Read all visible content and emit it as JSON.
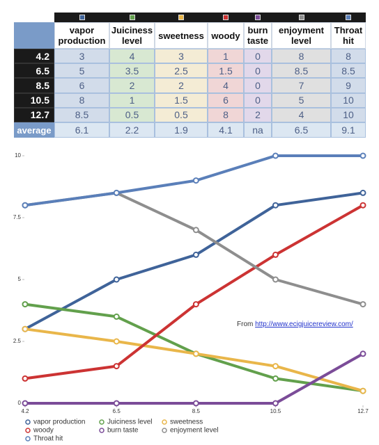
{
  "table": {
    "header": [
      "vapor production",
      "Juiciness level",
      "sweetness",
      "woody",
      "burn taste",
      "enjoyment level",
      "Throat hit"
    ],
    "rows": [
      {
        "label": 4.2,
        "cells": [
          3,
          4,
          3,
          1,
          0,
          8,
          8
        ]
      },
      {
        "label": 6.5,
        "cells": [
          5,
          3.5,
          2.5,
          1.5,
          0,
          8.5,
          8.5
        ]
      },
      {
        "label": 8.5,
        "cells": [
          6,
          2,
          2,
          4,
          0,
          7,
          9
        ]
      },
      {
        "label": 10.5,
        "cells": [
          8,
          1,
          1.5,
          6,
          0,
          5,
          10
        ]
      },
      {
        "label": 12.7,
        "cells": [
          8.5,
          0.5,
          0.5,
          8,
          2,
          4,
          10
        ]
      }
    ],
    "footer": {
      "label": "average",
      "cells": [
        6.1,
        2.2,
        1.9,
        4.1,
        "na",
        6.5,
        9.1
      ]
    }
  },
  "chart_data": {
    "type": "line",
    "x": [
      4.2,
      6.5,
      8.5,
      10.5,
      12.7
    ],
    "xlim": [
      4.2,
      12.7
    ],
    "xticks": [
      4.2,
      6.5,
      8.5,
      10.5,
      12.7
    ],
    "ylim": [
      0,
      10
    ],
    "yticks": [
      0,
      2.5,
      5,
      7.5,
      10
    ],
    "annotation": "From",
    "annotation_link": "http://www.ecigjuicereview.com/",
    "series": [
      {
        "name": "vapor production",
        "color": "#3f6399",
        "values": [
          3,
          5,
          6,
          8,
          8.5
        ]
      },
      {
        "name": "Juiciness level",
        "color": "#62a04c",
        "values": [
          4,
          3.5,
          2,
          1,
          0.5
        ]
      },
      {
        "name": "sweetness",
        "color": "#e9b64a",
        "values": [
          3,
          2.5,
          2,
          1.5,
          0.5
        ]
      },
      {
        "name": "woody",
        "color": "#cc3333",
        "values": [
          1,
          1.5,
          4,
          6,
          8
        ]
      },
      {
        "name": "burn taste",
        "color": "#7b4c98",
        "values": [
          0,
          0,
          0,
          0,
          2
        ]
      },
      {
        "name": "enjoyment level",
        "color": "#8e8e8e",
        "values": [
          8,
          8.5,
          7,
          5,
          4
        ]
      },
      {
        "name": "Throat hit",
        "color": "#5a7fb9",
        "values": [
          8,
          8.5,
          9,
          10,
          10
        ]
      }
    ]
  }
}
